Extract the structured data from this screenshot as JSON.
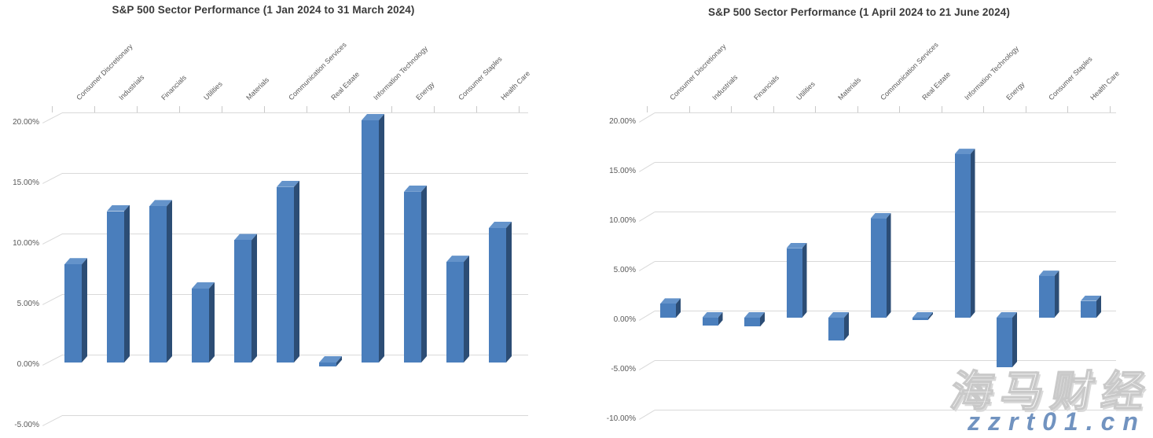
{
  "chart_data": [
    {
      "type": "bar",
      "style": "3d-column",
      "title": "S&P 500 Sector Performance (1 Jan 2024 to 31 March 2024)",
      "categories": [
        "Consumer Discretionary",
        "Industrials",
        "Financials",
        "Utilities",
        "Materials",
        "Communication Services",
        "Real Estate",
        "Information Technology",
        "Energy",
        "Consumer Staples",
        "Health Care"
      ],
      "values": [
        8.1,
        12.5,
        12.9,
        6.1,
        10.1,
        14.5,
        -0.3,
        20.0,
        14.1,
        8.3,
        11.1
      ],
      "value_unit": "%",
      "y_tick_labels": [
        "20.00%",
        "15.00%",
        "10.00%",
        "5.00%",
        "0.00%",
        "-5.00%"
      ],
      "ylim": [
        -5,
        20
      ],
      "grid": true,
      "legend": false
    },
    {
      "type": "bar",
      "style": "3d-column",
      "title": "S&P 500 Sector Performance (1 April 2024 to 21 June 2024)",
      "categories": [
        "Consumer Discretionary",
        "Industrials",
        "Financials",
        "Utilities",
        "Materials",
        "Communication Services",
        "Real Estate",
        "Information Technology",
        "Energy",
        "Consumer Staples",
        "Health Care"
      ],
      "values": [
        1.4,
        -0.8,
        -0.9,
        7.0,
        -2.3,
        10.0,
        -0.2,
        16.5,
        -5.0,
        4.2,
        1.7
      ],
      "value_unit": "%",
      "y_tick_labels": [
        "20.00%",
        "15.00%",
        "10.00%",
        "5.00%",
        "0.00%",
        "-5.00%",
        "-10.00%"
      ],
      "ylim": [
        -10,
        20
      ],
      "grid": true,
      "legend": false
    }
  ],
  "watermark": {
    "brand": "海马财经",
    "url": "zzrt01.cn"
  },
  "colors": {
    "bar_front": "#4a7ebc",
    "bar_top": "#6493ca",
    "bar_side": "#2c4d75",
    "gridline": "#d9d9d9",
    "axis_text": "#595959",
    "title_text": "#3a3a3a",
    "watermark_url_text": "#7193c0",
    "background": "#ffffff"
  }
}
